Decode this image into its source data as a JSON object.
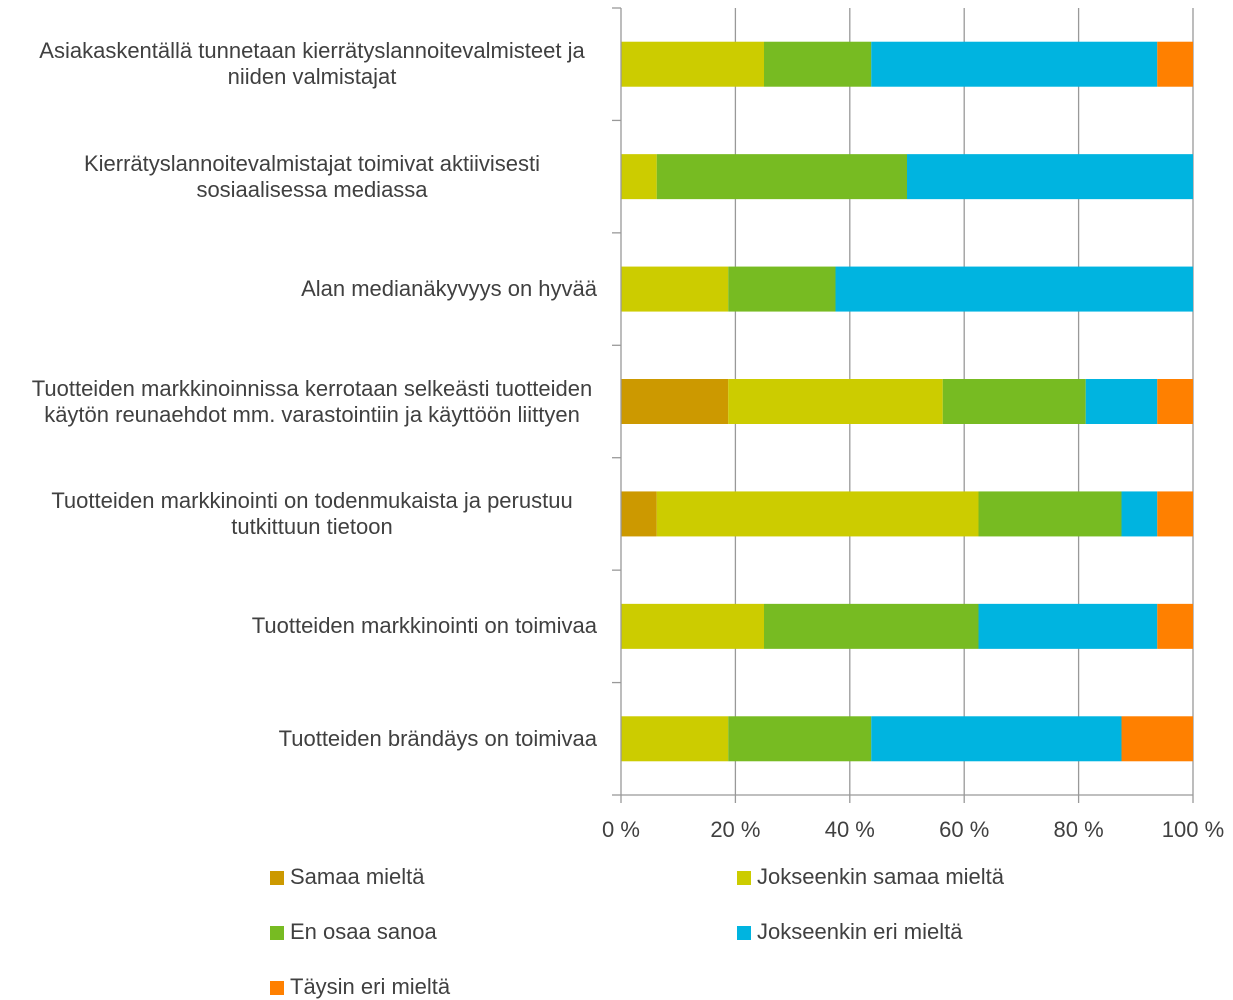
{
  "chart_data": {
    "type": "stacked_barh",
    "categories": [
      "Asiakaskentällä tunnetaan kierrätyslannoitevalmisteet ja niiden valmistajat",
      "Kierrätyslannoitevalmistajat toimivat aktiivisesti sosiaalisessa mediassa",
      "Alan medianäkyvyys on hyvää",
      "Tuotteiden markkinoinnissa kerrotaan selkeästi tuotteiden käytön reunaehdot mm. varastointiin ja käyttöön liittyen",
      "Tuotteiden markkinointi on todenmukaista ja perustuu tutkittuun tietoon",
      "Tuotteiden markkinointi on toimivaa",
      "Tuotteiden brändäys on toimivaa"
    ],
    "series": [
      {
        "name": "Samaa mieltä",
        "color": "#cc9900",
        "values": [
          0,
          0,
          0,
          18.75,
          6.25,
          0,
          0
        ]
      },
      {
        "name": "Jokseenkin samaa mieltä",
        "color": "#cccc00",
        "values": [
          25,
          6.25,
          18.75,
          37.5,
          56.25,
          25,
          18.75
        ]
      },
      {
        "name": "En osaa sanoa",
        "color": "#77bb22",
        "values": [
          18.75,
          43.75,
          18.75,
          25,
          25,
          37.5,
          25
        ]
      },
      {
        "name": "Jokseenkin eri mieltä",
        "color": "#00b4e0",
        "values": [
          50,
          50,
          62.5,
          12.5,
          6.25,
          31.25,
          43.75
        ]
      },
      {
        "name": "Täysin eri mieltä",
        "color": "#ff8000",
        "values": [
          6.25,
          0,
          0,
          6.25,
          6.25,
          6.25,
          12.5
        ]
      }
    ],
    "xlim": [
      0,
      100
    ],
    "xticks": [
      {
        "value": 0,
        "label": "0 %"
      },
      {
        "value": 20,
        "label": "20 %"
      },
      {
        "value": 40,
        "label": "40 %"
      },
      {
        "value": 60,
        "label": "60 %"
      },
      {
        "value": 80,
        "label": "80 %"
      },
      {
        "value": 100,
        "label": "100 %"
      }
    ],
    "grid": true,
    "legend": "bottom"
  }
}
